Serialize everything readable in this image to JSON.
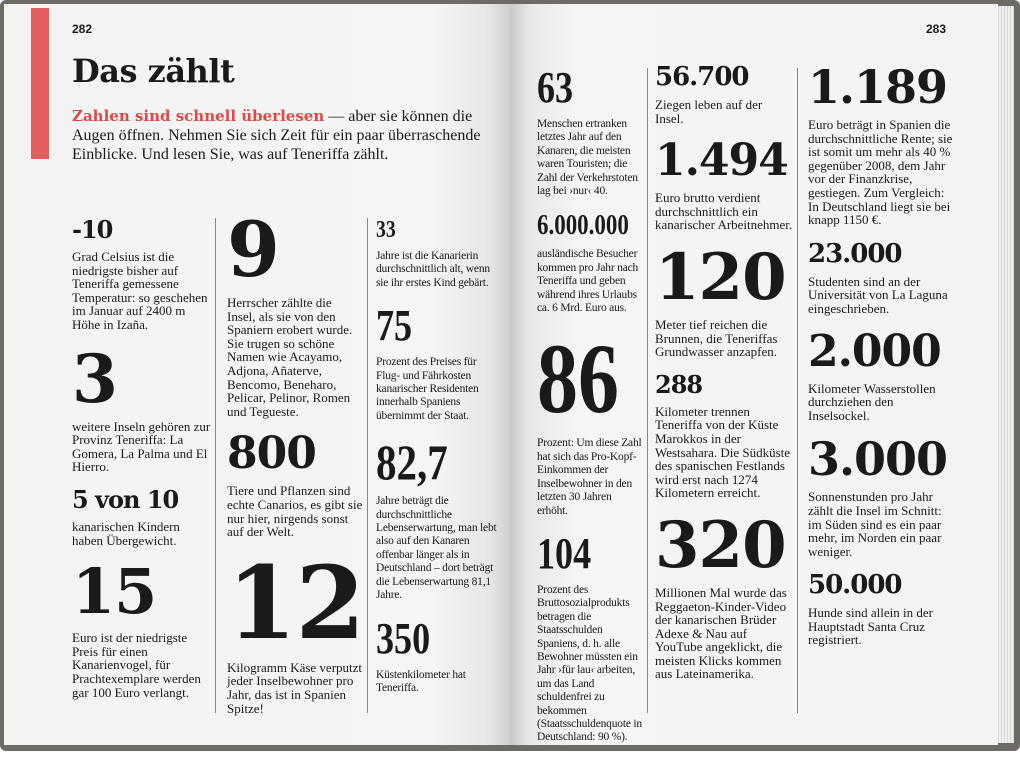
{
  "left_page": {
    "page_number": "282",
    "title": "Das zählt",
    "intro_highlight": "Zahlen sind schnell überlesen",
    "intro_text": " — aber sie können die Augen öffnen. Nehmen Sie sich Zeit für ein paar überraschende Einblicke. Und lesen Sie, was auf Teneriffa zählt.",
    "accent_color": "#e35d5d"
  },
  "right_page": {
    "page_number": "283"
  },
  "facts": [
    {
      "number": "-10",
      "text": "Grad Celsius ist die niedrigste bisher auf Teneriffa gemessene Temperatur: so geschehen im Januar auf 2400 m Höhe in Izaña."
    },
    {
      "number": "3",
      "text": "weitere Inseln gehören zur Provinz Teneriffa: La Gomera, La Palma und El Hierro."
    },
    {
      "number": "5 von 10",
      "text": "kanarischen Kindern haben Übergewicht."
    },
    {
      "number": "15",
      "text": "Euro ist der niedrigste Preis für einen Kanarienvogel, für Prachtexemplare werden gar 100 Euro verlangt."
    },
    {
      "number": "9",
      "text": "Herrscher zählte die Insel, als sie von den Spaniern erobert wurde. Sie trugen so schöne Namen wie Acayamo, Adjona, Añaterve, Bencomo, Beneharo, Pelicar, Pelinor, Romen und Tegueste."
    },
    {
      "number": "800",
      "text": "Tiere und Pflanzen sind echte Canarios, es gibt sie nur hier, nirgends sonst auf der Welt."
    },
    {
      "number": "12",
      "text": "Kilogramm Käse verputzt jeder Inselbewohner pro Jahr, das ist in Spanien Spitze!"
    },
    {
      "number": "33",
      "text": "Jahre ist die Kanarierin durchschnittlich alt, wenn sie ihr erstes Kind gebärt."
    },
    {
      "number": "75",
      "text": "Prozent des Preises für Flug- und Fährkosten kanarischer Residenten innerhalb Spaniens übernimmt der Staat."
    },
    {
      "number": "82,7",
      "text": "Jahre beträgt die durchschnittliche Lebenserwartung, man lebt also auf den Kanaren offenbar länger als in Deutschland – dort beträgt die Lebenserwartung 81,1 Jahre."
    },
    {
      "number": "350",
      "text": "Küstenkilometer hat Teneriffa."
    },
    {
      "number": "63",
      "text": "Menschen ertranken letztes Jahr auf den Kanaren, die meisten waren Touristen; die Zahl der Verkehrstoten lag bei ›nur‹ 40."
    },
    {
      "number": "6.000.000",
      "text": "ausländische Besucher kommen pro Jahr nach Teneriffa und geben während ihres Urlaubs ca. 6 Mrd. Euro aus."
    },
    {
      "number": "86",
      "text": "Prozent: Um diese Zahl hat sich das Pro-Kopf-Einkommen der Inselbewohner in den letzten 30 Jahren erhöht."
    },
    {
      "number": "104",
      "text": "Prozent des Bruttosozialprodukts betragen die Staatsschulden Spaniens, d. h. alle Bewohner müssten ein Jahr ›für lau‹ arbeiten, um das Land schuldenfrei zu bekommen (Staatsschuldenquote in Deutschland: 90 %)."
    },
    {
      "number": "56.700",
      "text": "Ziegen leben auf der Insel."
    },
    {
      "number": "1.494",
      "text": "Euro brutto verdient durchschnittlich ein kanarischer Arbeitnehmer."
    },
    {
      "number": "120",
      "text": "Meter tief reichen die Brunnen, die Teneriffas Grundwasser anzapfen."
    },
    {
      "number": "288",
      "text": "Kilometer trennen Teneriffa von der Küste Marokkos in der Westsahara. Die Südküste des spanischen Festlands wird erst nach 1274 Kilometern erreicht."
    },
    {
      "number": "320",
      "text": "Millionen Mal wurde das Reggaeton-Kinder-Video der kanarischen Brüder Adexe & Nau auf YouTube angeklickt, die meisten Klicks kommen aus Lateinamerika."
    },
    {
      "number": "1.189",
      "text": "Euro beträgt in Spanien die durchschnittliche Rente; sie ist somit um mehr als 40 % gegenüber 2008, dem Jahr vor der Finanzkrise, gestiegen. Zum Vergleich: In Deutschland liegt sie bei knapp 1150 €."
    },
    {
      "number": "23.000",
      "text": "Studenten sind an der Universität von La Laguna eingeschrieben."
    },
    {
      "number": "2.000",
      "text": "Kilometer Wasserstollen durchziehen den Inselsockel."
    },
    {
      "number": "3.000",
      "text": "Sonnenstunden pro Jahr zählt die Insel im Schnitt: im Süden sind es ein paar mehr, im Norden ein paar weniger."
    },
    {
      "number": "50.000",
      "text": "Hunde sind allein in der Hauptstadt Santa Cruz registriert."
    }
  ]
}
